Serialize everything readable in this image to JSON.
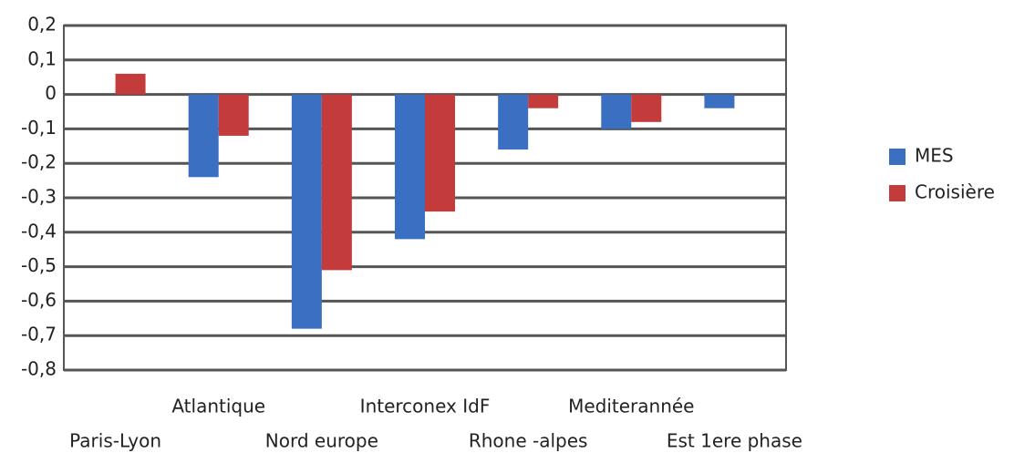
{
  "chart_data": {
    "type": "bar",
    "categories": [
      "Paris-Lyon",
      "Atlantique",
      "Nord europe",
      "Interconex IdF",
      "Rhone -alpes",
      "Mediterannée",
      "Est 1ere phase"
    ],
    "series": [
      {
        "name": "MES",
        "color": "#3b6fc2",
        "values": [
          0,
          -0.24,
          -0.68,
          -0.42,
          -0.16,
          -0.1,
          -0.04
        ]
      },
      {
        "name": "Croisière",
        "color": "#c43b3b",
        "values": [
          0.06,
          -0.12,
          -0.51,
          -0.34,
          -0.04,
          -0.08,
          0
        ]
      }
    ],
    "ylim": [
      -0.8,
      0.2
    ],
    "yticks": [
      {
        "value": 0.2,
        "label": "0,2"
      },
      {
        "value": 0.1,
        "label": "0,1"
      },
      0,
      {
        "value": -0.1,
        "label": "-0,1"
      },
      {
        "value": -0.2,
        "label": "-0,2"
      },
      {
        "value": -0.3,
        "label": "-0,3"
      },
      {
        "value": -0.4,
        "label": "-0,4"
      },
      {
        "value": -0.5,
        "label": "-0,5"
      },
      {
        "value": -0.6,
        "label": "-0,6"
      },
      {
        "value": -0.7,
        "label": "-0,7"
      },
      {
        "value": -0.8,
        "label": "-0,8"
      }
    ],
    "grid": true,
    "legend": "right"
  }
}
